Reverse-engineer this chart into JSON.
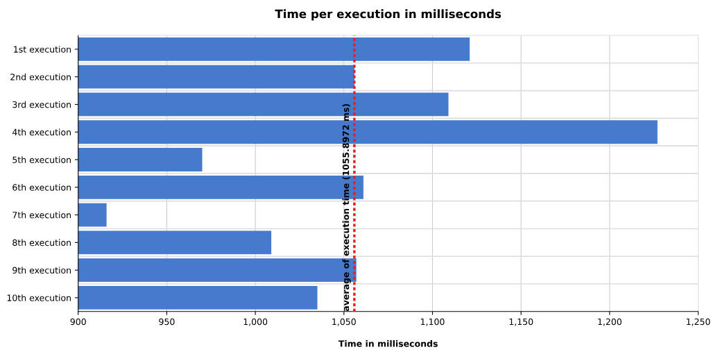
{
  "chart_data": {
    "type": "bar",
    "orientation": "horizontal",
    "title": "Time per execution in milliseconds",
    "xlabel": "Time in milliseconds",
    "categories": [
      "1st execution",
      "2nd execution",
      "3rd execution",
      "4th execution",
      "5th execution",
      "6th execution",
      "7th execution",
      "8th execution",
      "9th execution",
      "10th execution"
    ],
    "values": [
      1121,
      1056,
      1109,
      1227,
      970,
      1061,
      916,
      1009,
      1057,
      1035
    ],
    "color": "#4779cd",
    "xlim": [
      900,
      1250
    ],
    "xticks": [
      900,
      950,
      {
        "value": 1000,
        "label": "1,000"
      },
      {
        "value": 1050,
        "label": "1,050"
      },
      {
        "value": 1100,
        "label": "1,100"
      },
      {
        "value": 1150,
        "label": "1,150"
      },
      {
        "value": 1200,
        "label": "1,200"
      },
      {
        "value": 1250,
        "label": "1,250"
      }
    ],
    "grid": true,
    "ref_lines": [
      {
        "axis": "x",
        "value": 1055.8972,
        "label": "average of execution time (1055.8972 ms)",
        "color": "#ee1c25",
        "line_style": "dotted"
      }
    ]
  }
}
